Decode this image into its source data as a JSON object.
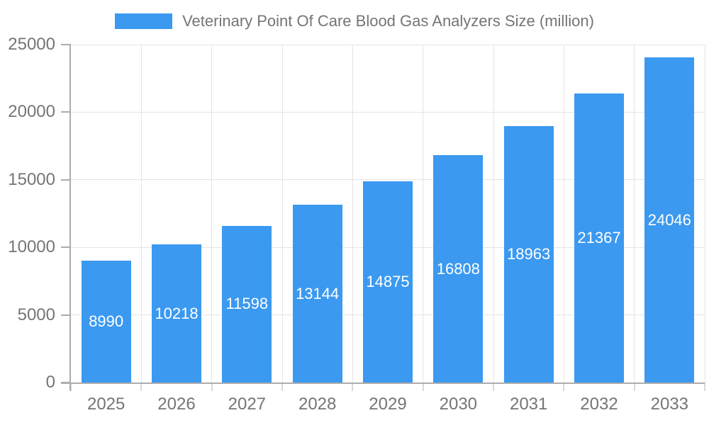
{
  "legend": {
    "label": "Veterinary Point Of Care Blood Gas Analyzers Size (million)"
  },
  "chart_data": {
    "type": "bar",
    "title": "Veterinary Point Of Care Blood Gas Analyzers Size (million)",
    "categories": [
      "2025",
      "2026",
      "2027",
      "2028",
      "2029",
      "2030",
      "2031",
      "2032",
      "2033"
    ],
    "values": [
      8990,
      10218,
      11598,
      13144,
      14875,
      16808,
      18963,
      21367,
      24046
    ],
    "series": [
      {
        "name": "Veterinary Point Of Care Blood Gas Analyzers Size (million)",
        "values": [
          8990,
          10218,
          11598,
          13144,
          14875,
          16808,
          18963,
          21367,
          24046
        ]
      }
    ],
    "xlabel": "",
    "ylabel": "",
    "ylim": [
      0,
      25000
    ],
    "yticks": [
      0,
      5000,
      10000,
      15000,
      20000,
      25000
    ],
    "grid": true,
    "legend_position": "top",
    "bar_value_labels": "inside-center",
    "colors": {
      "bar": "#3B99F0",
      "bar_label": "#FFFFFF",
      "axis_text": "#757575",
      "gridline": "#E4E4E4",
      "axis_line": "#ACACAC",
      "x_tick": "#D8D8D8",
      "background": "#FFFFFF"
    }
  }
}
